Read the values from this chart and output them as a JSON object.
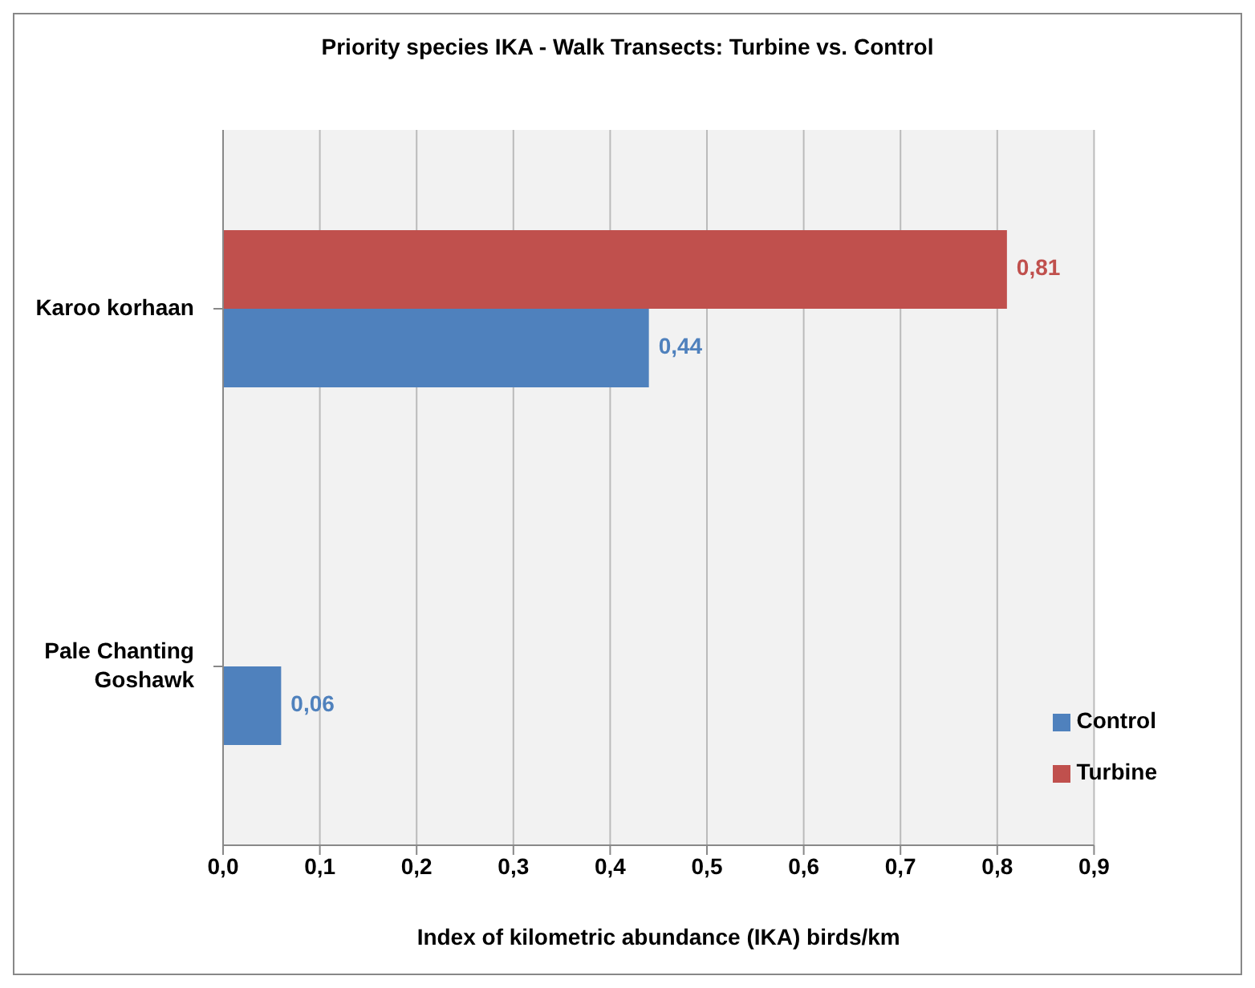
{
  "chart_data": {
    "type": "bar",
    "orientation": "horizontal",
    "title": "Priority species IKA - Walk Transects: Turbine vs. Control",
    "xlabel": "Index of kilometric abundance (IKA) birds/km",
    "categories": [
      "Karoo korhaan",
      "Pale Chanting Goshawk"
    ],
    "series": [
      {
        "name": "Turbine",
        "color": "#c0504d",
        "values": [
          0.81,
          null
        ],
        "value_labels": [
          "0,81",
          null
        ]
      },
      {
        "name": "Control",
        "color": "#4f81bd",
        "values": [
          0.44,
          0.06
        ],
        "value_labels": [
          "0,44",
          "0,06"
        ]
      }
    ],
    "xlim": [
      0,
      0.9
    ],
    "xticks": [
      {
        "value": 0,
        "label": "0,0"
      },
      {
        "value": 0.1,
        "label": "0,1"
      },
      {
        "value": 0.2,
        "label": "0,2"
      },
      {
        "value": 0.3,
        "label": "0,3"
      },
      {
        "value": 0.4,
        "label": "0,4"
      },
      {
        "value": 0.5,
        "label": "0,5"
      },
      {
        "value": 0.6,
        "label": "0,6"
      },
      {
        "value": 0.7,
        "label": "0,7"
      },
      {
        "value": 0.8,
        "label": "0,8"
      },
      {
        "value": 0.9,
        "label": "0,9"
      }
    ],
    "grid": "x",
    "legend": "bottom right"
  }
}
